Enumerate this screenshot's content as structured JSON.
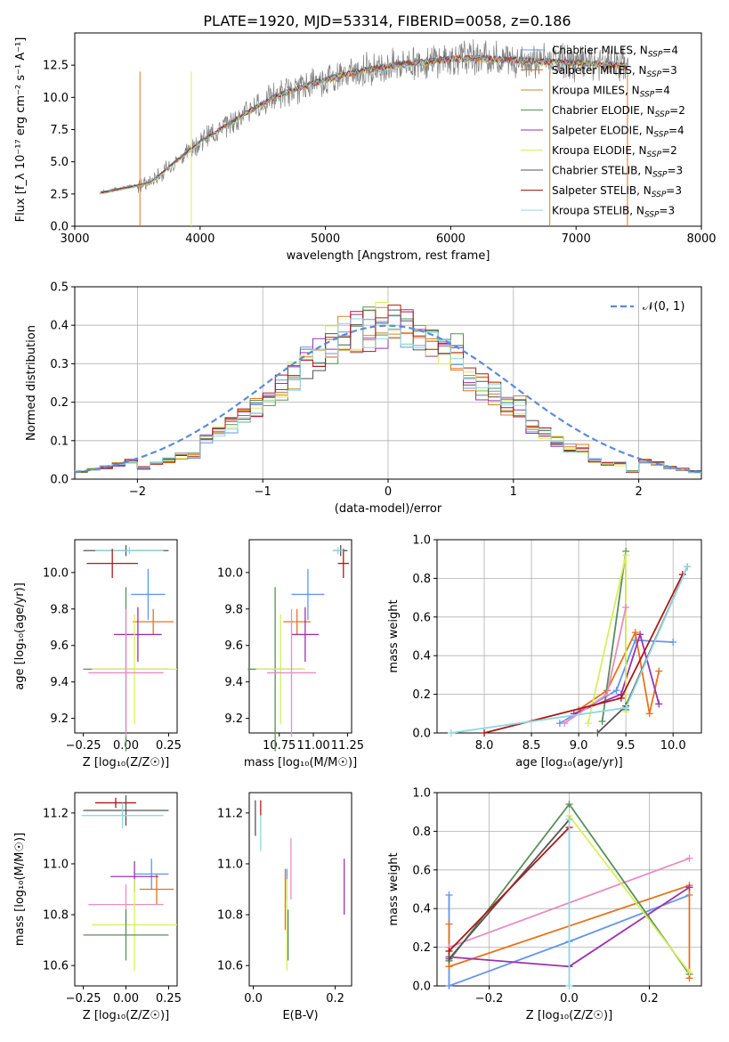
{
  "figure": {
    "title": "PLATE=1920, MJD=53314, FIBERID=0058, z=0.186"
  },
  "colors": {
    "series": [
      "#6495ED",
      "#E8731A",
      "#D98326",
      "#5A8E5A",
      "#9A32B0",
      "#D8EF5A",
      "#555555",
      "#B01818",
      "#8FD8E0",
      "#E98CC0",
      "#D8EF5A",
      "#6495ED"
    ]
  },
  "chart_data": [
    {
      "id": "spectrum",
      "type": "line",
      "xlabel": "wavelength [Angstrom, rest frame]",
      "ylabel": "Flux [f_λ 10⁻¹⁷ erg cm⁻² s⁻¹ A⁻¹]",
      "xlim": [
        3000,
        8000
      ],
      "ylim": [
        0,
        15
      ],
      "xticks": [
        "3000",
        "4000",
        "5000",
        "6000",
        "7000",
        "8000"
      ],
      "yticks": [
        "0.0",
        "2.5",
        "5.0",
        "7.5",
        "10.0",
        "12.5"
      ],
      "legend_position": "right",
      "data_x": [
        3200,
        3400,
        3600,
        3800,
        4000,
        4200,
        4400,
        4600,
        4800,
        5000,
        5200,
        5400,
        5600,
        5800,
        6000,
        6200,
        6400,
        6600,
        6800,
        7000,
        7200,
        7400
      ],
      "data_y": [
        2.6,
        3.0,
        3.4,
        5.0,
        6.6,
        7.8,
        9.0,
        10.1,
        10.8,
        11.4,
        11.9,
        12.3,
        12.6,
        12.8,
        13.0,
        13.1,
        13.0,
        12.9,
        12.8,
        12.7,
        12.6,
        12.5
      ],
      "series": [
        {
          "name": "Chabrier MILES, N_SSP=4",
          "color": "#6495ED"
        },
        {
          "name": "Salpeter MILES, N_SSP=3",
          "color": "#E8731A"
        },
        {
          "name": "Kroupa MILES, N_SSP=4",
          "color": "#D98326"
        },
        {
          "name": "Chabrier ELODIE, N_SSP=2",
          "color": "#5A8E5A"
        },
        {
          "name": "Salpeter ELODIE, N_SSP=4",
          "color": "#9A32B0"
        },
        {
          "name": "Kroupa ELODIE, N_SSP=2",
          "color": "#D8EF5A"
        },
        {
          "name": "Chabrier STELIB, N_SSP=3",
          "color": "#555555"
        },
        {
          "name": "Salpeter STELIB, N_SSP=3",
          "color": "#B01818"
        },
        {
          "name": "Kroupa STELIB, N_SSP=3",
          "color": "#8FD8E0"
        }
      ]
    },
    {
      "id": "residuals",
      "type": "line",
      "xlabel": "(data-model)/error",
      "ylabel": "Normed distribution",
      "xlim": [
        -2.5,
        2.5
      ],
      "ylim": [
        0,
        0.5
      ],
      "xticks": [
        "−2",
        "−1",
        "0",
        "1",
        "2"
      ],
      "yticks": [
        "0.0",
        "0.1",
        "0.2",
        "0.3",
        "0.4",
        "0.5"
      ],
      "grid": true,
      "legend_position": "top-right",
      "legend": "𝒩(0, 1)",
      "bin_width": 0.1,
      "hist_envelope": [
        0.02,
        0.03,
        0.04,
        0.05,
        0.06,
        0.08,
        0.1,
        0.12,
        0.14,
        0.16,
        0.19,
        0.22,
        0.24,
        0.27,
        0.3,
        0.33,
        0.35,
        0.37,
        0.38,
        0.39,
        0.4,
        0.39,
        0.38,
        0.37,
        0.35,
        0.33,
        0.3,
        0.27,
        0.24,
        0.22,
        0.19,
        0.16,
        0.14,
        0.12,
        0.1,
        0.08,
        0.06,
        0.05,
        0.04,
        0.03,
        0.02
      ]
    },
    {
      "id": "age_vs_Z",
      "type": "scatter",
      "xlabel": "Z [log₁₀(Z/Z☉)]",
      "ylabel": "age  [log₁₀(age/yr)]",
      "xlim": [
        -0.3,
        0.3
      ],
      "ylim": [
        9.12,
        10.18
      ],
      "xticks": [
        "−0.25",
        "0.00",
        "0.25"
      ],
      "yticks": [
        "9.2",
        "9.4",
        "9.6",
        "9.8",
        "10.0"
      ],
      "points": [
        {
          "x": 0.0,
          "y": 10.12,
          "xerr": 0.25,
          "yerr": 0.03,
          "c": "#555555"
        },
        {
          "x": 0.02,
          "y": 10.12,
          "xerr": 0.2,
          "yerr": 0.02,
          "c": "#8FD8E0"
        },
        {
          "x": -0.08,
          "y": 10.05,
          "xerr": 0.15,
          "yerr": 0.08,
          "c": "#B01818"
        },
        {
          "x": 0.13,
          "y": 9.88,
          "xerr": 0.1,
          "yerr": 0.14,
          "c": "#6495ED"
        },
        {
          "x": 0.16,
          "y": 9.73,
          "xerr": 0.12,
          "yerr": 0.07,
          "c": "#E8731A"
        },
        {
          "x": 0.07,
          "y": 9.66,
          "xerr": 0.14,
          "yerr": 0.15,
          "c": "#9A32B0"
        },
        {
          "x": 0.0,
          "y": 9.47,
          "xerr": 0.25,
          "yerr": 0.45,
          "c": "#5A8E5A"
        },
        {
          "x": 0.05,
          "y": 9.47,
          "xerr": 0.25,
          "yerr": 0.3,
          "c": "#D8EF5A"
        },
        {
          "x": 0.0,
          "y": 9.45,
          "xerr": 0.22,
          "yerr": 0.35,
          "c": "#E98CC0"
        }
      ]
    },
    {
      "id": "age_vs_mass",
      "type": "scatter",
      "xlabel": "mass [log₁₀(M/M☉)]",
      "xlim": [
        10.53,
        11.28
      ],
      "ylim": [
        9.12,
        10.18
      ],
      "xticks": [
        "10.75",
        "11.00",
        "11.25"
      ],
      "yticks": [
        "9.2",
        "9.4",
        "9.6",
        "9.8",
        "10.0"
      ],
      "points": [
        {
          "x": 11.2,
          "y": 10.12,
          "xerr": 0.05,
          "yerr": 0.03,
          "c": "#555555"
        },
        {
          "x": 11.22,
          "y": 10.05,
          "xerr": 0.04,
          "yerr": 0.08,
          "c": "#B01818"
        },
        {
          "x": 11.18,
          "y": 10.12,
          "xerr": 0.04,
          "yerr": 0.02,
          "c": "#8FD8E0"
        },
        {
          "x": 10.96,
          "y": 9.88,
          "xerr": 0.12,
          "yerr": 0.14,
          "c": "#6495ED"
        },
        {
          "x": 10.88,
          "y": 9.73,
          "xerr": 0.1,
          "yerr": 0.07,
          "c": "#E8731A"
        },
        {
          "x": 10.94,
          "y": 9.66,
          "xerr": 0.1,
          "yerr": 0.15,
          "c": "#9A32B0"
        },
        {
          "x": 10.72,
          "y": 9.47,
          "xerr": 0.2,
          "yerr": 0.45,
          "c": "#5A8E5A"
        },
        {
          "x": 10.76,
          "y": 9.47,
          "xerr": 0.18,
          "yerr": 0.3,
          "c": "#D8EF5A"
        },
        {
          "x": 10.84,
          "y": 9.45,
          "xerr": 0.18,
          "yerr": 0.35,
          "c": "#E98CC0"
        }
      ]
    },
    {
      "id": "weight_vs_age",
      "type": "line",
      "xlabel": "age  [log₁₀(age/yr)]",
      "ylabel": "mass weight",
      "xlim": [
        7.5,
        10.3
      ],
      "ylim": [
        0,
        1
      ],
      "xticks": [
        "8.0",
        "8.5",
        "9.0",
        "9.5",
        "10.0"
      ],
      "yticks": [
        "0.0",
        "0.2",
        "0.4",
        "0.6",
        "0.8",
        "1.0"
      ],
      "grid": true,
      "series": [
        {
          "c": "#6495ED",
          "x": [
            8.8,
            9.4,
            9.6,
            10.0
          ],
          "y": [
            0.05,
            0.22,
            0.48,
            0.47
          ]
        },
        {
          "c": "#E8731A",
          "x": [
            9.0,
            9.3,
            9.6,
            9.75,
            9.85
          ],
          "y": [
            0.12,
            0.22,
            0.52,
            0.1,
            0.32
          ]
        },
        {
          "c": "#5A8E5A",
          "x": [
            9.25,
            9.5,
            9.5
          ],
          "y": [
            0.06,
            0.94,
            0.12
          ]
        },
        {
          "c": "#9A32B0",
          "x": [
            8.95,
            9.45,
            9.65,
            9.85
          ],
          "y": [
            0.1,
            0.2,
            0.51,
            0.15
          ]
        },
        {
          "c": "#D8EF5A",
          "x": [
            9.1,
            9.5,
            9.5
          ],
          "y": [
            0.05,
            0.92,
            0.11
          ]
        },
        {
          "c": "#E98CC0",
          "x": [
            8.85,
            9.3,
            9.5
          ],
          "y": [
            0.05,
            0.2,
            0.65
          ]
        },
        {
          "c": "#555555",
          "x": [
            9.2,
            9.5,
            10.15
          ],
          "y": [
            0.0,
            0.14,
            0.86
          ]
        },
        {
          "c": "#B01818",
          "x": [
            8.0,
            9.45,
            10.1
          ],
          "y": [
            0.0,
            0.18,
            0.82
          ]
        },
        {
          "c": "#8FD8E0",
          "x": [
            7.65,
            9.5,
            10.15
          ],
          "y": [
            0.0,
            0.13,
            0.86
          ]
        }
      ]
    },
    {
      "id": "mass_vs_Z",
      "type": "scatter",
      "xlabel": "Z [log₁₀(Z/Z☉)]",
      "ylabel": "mass [log₁₀(M/M☉)]",
      "xlim": [
        -0.3,
        0.3
      ],
      "ylim": [
        10.52,
        11.28
      ],
      "xticks": [
        "−0.25",
        "0.00",
        "0.25"
      ],
      "yticks": [
        "10.6",
        "10.8",
        "11.0",
        "11.2"
      ],
      "points": [
        {
          "x": -0.06,
          "y": 11.24,
          "xerr": 0.12,
          "yerr": 0.02,
          "c": "#B01818"
        },
        {
          "x": 0.0,
          "y": 11.21,
          "xerr": 0.25,
          "yerr": 0.06,
          "c": "#555555"
        },
        {
          "x": -0.02,
          "y": 11.19,
          "xerr": 0.24,
          "yerr": 0.05,
          "c": "#8FD8E0"
        },
        {
          "x": 0.15,
          "y": 10.96,
          "xerr": 0.1,
          "yerr": 0.06,
          "c": "#6495ED"
        },
        {
          "x": 0.18,
          "y": 10.9,
          "xerr": 0.1,
          "yerr": 0.06,
          "c": "#E8731A"
        },
        {
          "x": 0.05,
          "y": 10.95,
          "xerr": 0.14,
          "yerr": 0.06,
          "c": "#9A32B0"
        },
        {
          "x": 0.0,
          "y": 10.84,
          "xerr": 0.22,
          "yerr": 0.08,
          "c": "#E98CC0"
        },
        {
          "x": 0.05,
          "y": 10.76,
          "xerr": 0.25,
          "yerr": 0.18,
          "c": "#D8EF5A"
        },
        {
          "x": 0.0,
          "y": 10.72,
          "xerr": 0.25,
          "yerr": 0.1,
          "c": "#5A8E5A"
        }
      ]
    },
    {
      "id": "mass_vs_ebv",
      "type": "scatter",
      "xlabel": "E(B-V)",
      "xlim": [
        -0.01,
        0.24
      ],
      "ylim": [
        10.52,
        11.28
      ],
      "xticks": [
        "0.0",
        "0.2"
      ],
      "yticks": [
        "10.6",
        "10.8",
        "11.0",
        "11.2"
      ],
      "points": [
        {
          "x": 0.005,
          "y": 11.18,
          "yerr": 0.07,
          "c": "#555555"
        },
        {
          "x": 0.018,
          "y": 11.22,
          "yerr": 0.03,
          "c": "#B01818"
        },
        {
          "x": 0.018,
          "y": 11.12,
          "yerr": 0.07,
          "c": "#8FD8E0"
        },
        {
          "x": 0.082,
          "y": 10.92,
          "yerr": 0.06,
          "c": "#6495ED"
        },
        {
          "x": 0.078,
          "y": 10.86,
          "yerr": 0.12,
          "c": "#E8731A"
        },
        {
          "x": 0.222,
          "y": 10.91,
          "yerr": 0.11,
          "c": "#9A32B0"
        },
        {
          "x": 0.082,
          "y": 10.76,
          "yerr": 0.18,
          "c": "#D8EF5A"
        },
        {
          "x": 0.092,
          "y": 10.98,
          "yerr": 0.12,
          "c": "#E98CC0"
        },
        {
          "x": 0.085,
          "y": 10.72,
          "yerr": 0.1,
          "c": "#5A8E5A"
        }
      ]
    },
    {
      "id": "weight_vs_Z",
      "type": "line",
      "xlabel": "Z [log₁₀(Z/Z☉)]",
      "ylabel": "mass weight",
      "xlim": [
        -0.33,
        0.33
      ],
      "ylim": [
        0,
        1
      ],
      "xticks": [
        "−0.2",
        "0.0",
        "0.2"
      ],
      "yticks": [
        "0.0",
        "0.2",
        "0.4",
        "0.6",
        "0.8",
        "1.0"
      ],
      "grid": true,
      "series": [
        {
          "c": "#6495ED",
          "x": [
            -0.3,
            -0.3,
            0.0,
            0.3
          ],
          "y": [
            0.47,
            0.0,
            0.23,
            0.47
          ]
        },
        {
          "c": "#E8731A",
          "x": [
            -0.3,
            -0.3,
            0.3,
            0.3
          ],
          "y": [
            0.32,
            0.1,
            0.52,
            0.04
          ]
        },
        {
          "c": "#9A32B0",
          "x": [
            -0.3,
            0.0,
            0.3
          ],
          "y": [
            0.15,
            0.1,
            0.51
          ]
        },
        {
          "c": "#E98CC0",
          "x": [
            -0.3,
            0.3
          ],
          "y": [
            0.2,
            0.66
          ]
        },
        {
          "c": "#5A8E5A",
          "x": [
            -0.3,
            0.0,
            0.3
          ],
          "y": [
            0.13,
            0.94,
            0.06
          ]
        },
        {
          "c": "#D8EF5A",
          "x": [
            0.0,
            0.3
          ],
          "y": [
            0.88,
            0.07
          ]
        },
        {
          "c": "#555555",
          "x": [
            -0.3,
            0.0
          ],
          "y": [
            0.14,
            0.86
          ]
        },
        {
          "c": "#B01818",
          "x": [
            -0.3,
            0.0
          ],
          "y": [
            0.18,
            0.82
          ]
        },
        {
          "c": "#8FD8E0",
          "x": [
            0.0,
            0.0
          ],
          "y": [
            0.86,
            0.0
          ]
        }
      ]
    }
  ]
}
